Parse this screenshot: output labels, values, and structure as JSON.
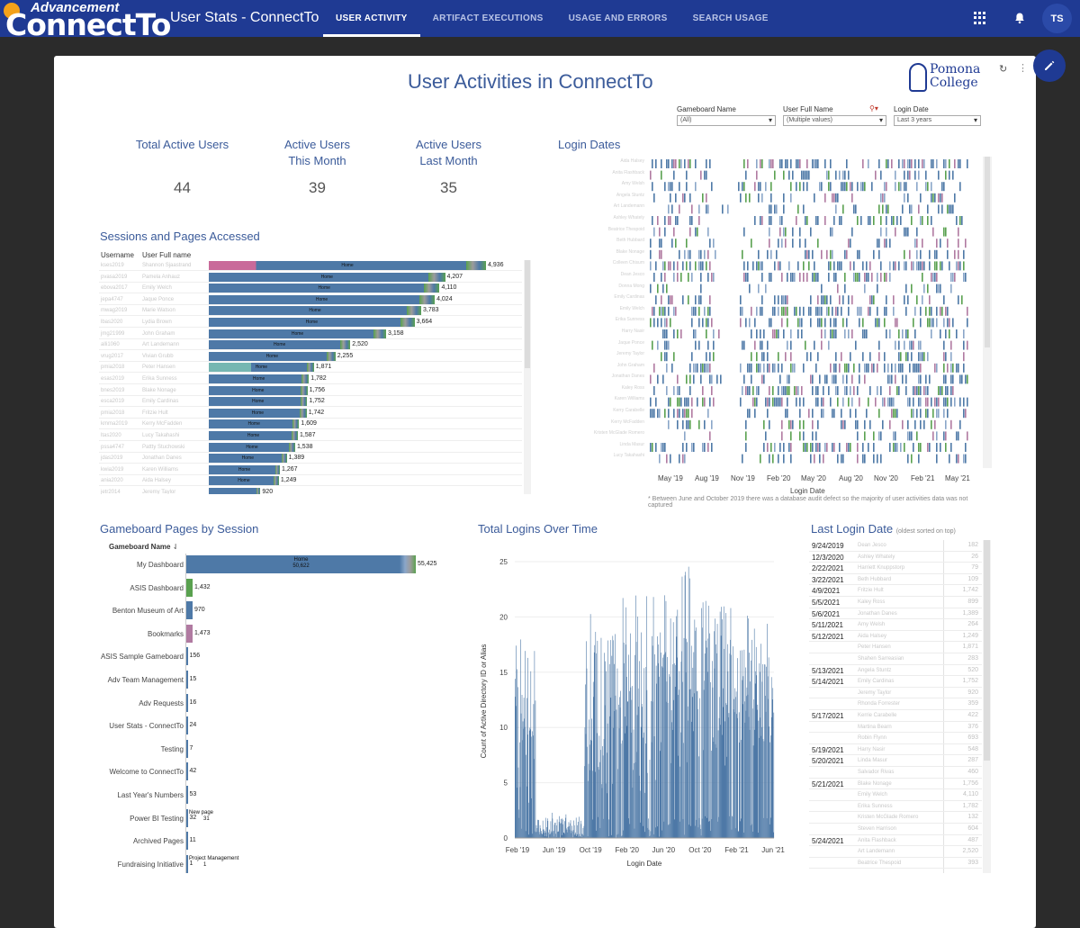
{
  "app": {
    "logo_top": "Advancement",
    "logo_bottom": "ConnectTo",
    "title": "User Stats - ConnectTo",
    "avatar": "TS"
  },
  "nav": {
    "tabs": [
      {
        "label": "USER ACTIVITY",
        "active": true
      },
      {
        "label": "ARTIFACT EXECUTIONS",
        "active": false
      },
      {
        "label": "USAGE AND ERRORS",
        "active": false
      },
      {
        "label": "SEARCH USAGE",
        "active": false
      }
    ],
    "icons": {
      "apps": "grid-icon",
      "notifications": "bell-icon",
      "edit": "pencil-icon"
    }
  },
  "dashboard": {
    "title": "User Activities in ConnectTo",
    "brand_line1": "Pomona",
    "brand_line2": "College",
    "refresh_glyph": "↻",
    "more_glyph": "⋮"
  },
  "filters": [
    {
      "label": "Gameboard Name",
      "value": "(All)"
    },
    {
      "label": "User Full Name",
      "value": "(Multiple values)"
    },
    {
      "label": "Login Date",
      "value": "Last 3 years"
    }
  ],
  "kpis": [
    {
      "label": "Total Active Users",
      "value": "44"
    },
    {
      "label": "Active Users\nThis Month",
      "value": "39"
    },
    {
      "label": "Active Users\nLast Month",
      "value": "35"
    }
  ],
  "sessions": {
    "title": "Sessions and Pages Accessed",
    "col_username": "Username",
    "col_fullname": "User Full name",
    "max": 4936,
    "rows": [
      {
        "username": "kses2019",
        "name": "Shannon Sjaastrand",
        "value": 4936,
        "label": "Home",
        "value_label": "4,936"
      },
      {
        "username": "pvasa2019",
        "name": "Pamela Anhauz",
        "value": 4207,
        "label": "Home",
        "value_label": "4,207"
      },
      {
        "username": "ebova2017",
        "name": "Emily Welch",
        "value": 4110,
        "label": "Home",
        "value_label": "4,110"
      },
      {
        "username": "jepa4747",
        "name": "Jaque Ponce",
        "value": 4024,
        "label": "Home",
        "value_label": "4,024"
      },
      {
        "username": "mwag2019",
        "name": "Marie Watson",
        "value": 3783,
        "label": "Home",
        "value_label": "3,783"
      },
      {
        "username": "lbas2020",
        "name": "Lydia Brown",
        "value": 3664,
        "label": "Home",
        "value_label": "3,664"
      },
      {
        "username": "jmg21999",
        "name": "John Graham",
        "value": 3158,
        "label": "Home",
        "value_label": "3,158"
      },
      {
        "username": "alli1060",
        "name": "Art Landemann",
        "value": 2520,
        "label": "Home",
        "value_label": "2,520"
      },
      {
        "username": "vrug2017",
        "name": "Vivian Grubb",
        "value": 2255,
        "label": "Home",
        "value_label": "2,255"
      },
      {
        "username": "pmia2018",
        "name": "Peter Hansen",
        "value": 1871,
        "label": "Home",
        "value_label": "1,871"
      },
      {
        "username": "esas2019",
        "name": "Erika Sunness",
        "value": 1782,
        "label": "Home",
        "value_label": "1,782"
      },
      {
        "username": "bnes2019",
        "name": "Blake Nonage",
        "value": 1756,
        "label": "Home",
        "value_label": "1,756"
      },
      {
        "username": "esca2019",
        "name": "Emily Cardinas",
        "value": 1752,
        "label": "Home",
        "value_label": "1,752"
      },
      {
        "username": "pmia2018",
        "name": "Fritzie Hult",
        "value": 1742,
        "label": "Home",
        "value_label": "1,742"
      },
      {
        "username": "kmma2019",
        "name": "Kerry McFadden",
        "value": 1609,
        "label": "Home",
        "value_label": "1,609"
      },
      {
        "username": "ltas2020",
        "name": "Lucy Takahashi",
        "value": 1587,
        "label": "Home",
        "value_label": "1,587"
      },
      {
        "username": "pssa4747",
        "name": "Pattty Stuchowski",
        "value": 1538,
        "label": "Home",
        "value_label": "1,538"
      },
      {
        "username": "jdas2019",
        "name": "Jonathan Danes",
        "value": 1389,
        "label": "Home",
        "value_label": "1,389"
      },
      {
        "username": "kwia2019",
        "name": "Karen Williams",
        "value": 1267,
        "label": "Home",
        "value_label": "1,267"
      },
      {
        "username": "ania2020",
        "name": "Aida Halsey",
        "value": 1249,
        "label": "Home",
        "value_label": "1,249"
      },
      {
        "username": "jetr2014",
        "name": "Jeremy Taylor",
        "value": 920,
        "label": "",
        "value_label": "920"
      }
    ]
  },
  "login_dates": {
    "title": "Login Dates",
    "x_label": "Login Date",
    "x_ticks": [
      "May '19",
      "Aug '19",
      "Nov '19",
      "Feb '20",
      "May '20",
      "Aug '20",
      "Nov '20",
      "Feb '21",
      "May '21"
    ],
    "footnote": "* Between June and October 2019 there was a database audit defect so the majority of user activities data was not captured",
    "names": [
      "Aida Halsey",
      "Anita Flashback",
      "Amy Welsh",
      "Angela Stuntz",
      "Art Landemann",
      "Ashley Whately",
      "Beatrice Thespoid",
      "Beth Hubbard",
      "Blake Nonage",
      "Colleen Chisum",
      "Dean Jesco",
      "Donna Mong",
      "Emily Cardinas",
      "Emily Welch",
      "Erika Sunness",
      "Harry Nasir",
      "Jaque Ponce",
      "Jeremy Taylor",
      "John Graham",
      "Jonathan Danes",
      "Kaley Ross",
      "Karen Williams",
      "Kerry Carabelle",
      "Kerry McFadden",
      "Kristen McGlade Romero",
      "Linda Masur",
      "Lucy Takahashi"
    ]
  },
  "gameboard": {
    "title": "Gameboard Pages by Session",
    "col_header": "Gameboard Name",
    "max": 55425,
    "rows": [
      {
        "name": "My Dashboard",
        "value": 55425,
        "label": "55,425",
        "inner": "Home",
        "inner_value": "50,622",
        "color": "#4e79a7"
      },
      {
        "name": "ASIS Dashboard",
        "value": 1432,
        "label": "1,432",
        "color": "#59a14f"
      },
      {
        "name": "Benton Museum of Art",
        "value": 970,
        "label": "970",
        "color": "#4e79a7"
      },
      {
        "name": "Bookmarks",
        "value": 1473,
        "label": "1,473",
        "color": "#b07aa1"
      },
      {
        "name": "ASIS Sample Gameboard",
        "value": 156,
        "label": "156",
        "color": "#4e79a7"
      },
      {
        "name": "Adv Team Management",
        "value": 15,
        "label": "15",
        "color": "#4e79a7"
      },
      {
        "name": "Adv Requests",
        "value": 16,
        "label": "16",
        "color": "#4e79a7"
      },
      {
        "name": "User Stats - ConnectTo",
        "value": 24,
        "label": "24",
        "color": "#4e79a7"
      },
      {
        "name": "Testing",
        "value": 7,
        "label": "7",
        "color": "#4e79a7"
      },
      {
        "name": "Welcome to ConnectTo",
        "value": 42,
        "label": "42",
        "color": "#4e79a7"
      },
      {
        "name": "Last Year's Numbers",
        "value": 53,
        "label": "53",
        "color": "#4e79a7"
      },
      {
        "name": "Power BI Testing",
        "value": 32,
        "label": "32",
        "inner": "New page",
        "inner_value": "31",
        "color": "#4e79a7"
      },
      {
        "name": "Archived Pages",
        "value": 11,
        "label": "11",
        "color": "#4e79a7"
      },
      {
        "name": "Fundraising Initiative",
        "value": 1,
        "label": "1",
        "inner": "Project Management",
        "inner_value": "1",
        "color": "#4e79a7"
      }
    ]
  },
  "chart_data": {
    "type": "bar",
    "title": "Total Logins Over Time",
    "xlabel": "Login Date",
    "ylabel": "Count of Active Directory ID or Alias",
    "ylim": [
      0,
      25
    ],
    "y_ticks": [
      "0",
      "5",
      "10",
      "15",
      "20",
      "25"
    ],
    "x_ticks": [
      "Feb '19",
      "Jun '19",
      "Oct '19",
      "Feb '20",
      "Jun '20",
      "Oct '20",
      "Feb '21",
      "Jun '21"
    ],
    "series_color": "#4e79a7",
    "segments": [
      {
        "from": 0,
        "to": 45,
        "min": 2,
        "max": 16,
        "peak": 18
      },
      {
        "from": 45,
        "to": 150,
        "min": 0,
        "max": 2,
        "peak": 3
      },
      {
        "from": 150,
        "to": 330,
        "min": 4,
        "max": 19,
        "peak": 22
      },
      {
        "from": 330,
        "to": 475,
        "min": 6,
        "max": 21,
        "peak": 25
      },
      {
        "from": 475,
        "to": 560,
        "min": 8,
        "max": 18,
        "peak": 21
      }
    ],
    "days": 560
  },
  "last_login": {
    "title": "Last Login Date",
    "subtitle": "(oldest sorted on top)",
    "rows": [
      {
        "date": "9/24/2019",
        "name": "Dean Jesco",
        "count": "182"
      },
      {
        "date": "12/3/2020",
        "name": "Ashley Whately",
        "count": "26"
      },
      {
        "date": "2/22/2021",
        "name": "Harriett Knuppstorp",
        "count": "79"
      },
      {
        "date": "3/22/2021",
        "name": "Beth Hubbard",
        "count": "109"
      },
      {
        "date": "4/9/2021",
        "name": "Fritzie Hult",
        "count": "1,742"
      },
      {
        "date": "5/5/2021",
        "name": "Kaley Ross",
        "count": "899"
      },
      {
        "date": "5/6/2021",
        "name": "Jonathan Danes",
        "count": "1,389"
      },
      {
        "date": "5/11/2021",
        "name": "Amy Welsh",
        "count": "264"
      },
      {
        "date": "5/12/2021",
        "name": "Aida Halsey",
        "count": "1,249"
      },
      {
        "date": "",
        "name": "Peter Hansen",
        "count": "1,871"
      },
      {
        "date": "",
        "name": "Shahen Sarreasian",
        "count": "283"
      },
      {
        "date": "5/13/2021",
        "name": "Angela Stuntz",
        "count": "520"
      },
      {
        "date": "5/14/2021",
        "name": "Emily Cardinas",
        "count": "1,752"
      },
      {
        "date": "",
        "name": "Jeremy Taylor",
        "count": "920"
      },
      {
        "date": "",
        "name": "Rhonda Forrester",
        "count": "359"
      },
      {
        "date": "5/17/2021",
        "name": "Kerrie Carabelle",
        "count": "422"
      },
      {
        "date": "",
        "name": "Martina Bearn",
        "count": "376"
      },
      {
        "date": "",
        "name": "Robin Flynn",
        "count": "693"
      },
      {
        "date": "5/19/2021",
        "name": "Harry Nasir",
        "count": "548"
      },
      {
        "date": "5/20/2021",
        "name": "Linda Masur",
        "count": "287"
      },
      {
        "date": "",
        "name": "Salvador Rivas",
        "count": "460"
      },
      {
        "date": "5/21/2021",
        "name": "Blake Nonage",
        "count": "1,756"
      },
      {
        "date": "",
        "name": "Emily Welch",
        "count": "4,110"
      },
      {
        "date": "",
        "name": "Erika Sunness",
        "count": "1,782"
      },
      {
        "date": "",
        "name": "Kristen McGlade Romero",
        "count": "132"
      },
      {
        "date": "",
        "name": "Steven Harrison",
        "count": "604"
      },
      {
        "date": "5/24/2021",
        "name": "Anita Flashback",
        "count": "487"
      },
      {
        "date": "",
        "name": "Art Landemann",
        "count": "2,520"
      },
      {
        "date": "",
        "name": "Beatrice Thespoid",
        "count": "393"
      }
    ]
  }
}
